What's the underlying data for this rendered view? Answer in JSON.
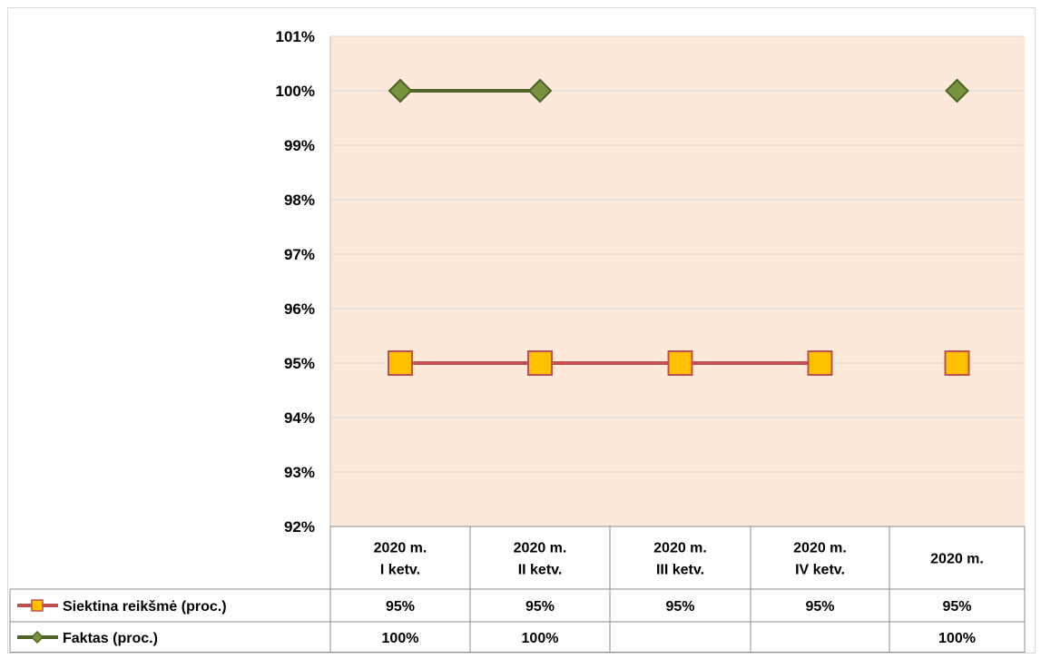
{
  "chart_data": {
    "type": "line",
    "categories": [
      [
        "2020 m.",
        "I ketv."
      ],
      [
        "2020 m.",
        "II ketv."
      ],
      [
        "2020 m.",
        "III ketv."
      ],
      [
        "2020 m.",
        "IV ketv."
      ],
      [
        "2020 m."
      ]
    ],
    "ylim": [
      92,
      101
    ],
    "ytick_labels": [
      "101%",
      "100%",
      "99%",
      "98%",
      "97%",
      "96%",
      "95%",
      "94%",
      "93%",
      "92%"
    ],
    "grid": true,
    "plot_background": "#fce9da",
    "series": [
      {
        "name": "Siektina reikšmė (proc.)",
        "values": [
          95,
          95,
          95,
          95,
          95
        ],
        "labels": [
          "95%",
          "95%",
          "95%",
          "95%",
          "95%"
        ],
        "connected_until": 3,
        "line_color": "#c0504d",
        "marker": "square",
        "marker_fill": "#ffc000",
        "marker_edge": "#c0504d"
      },
      {
        "name": "Faktas (proc.)",
        "values": [
          100,
          100,
          null,
          null,
          100
        ],
        "labels": [
          "100%",
          "100%",
          "",
          "",
          "100%"
        ],
        "connected_until": 1,
        "line_color": "#4f6228",
        "marker": "diamond",
        "marker_fill": "#77933c",
        "marker_edge": "#4f6228"
      }
    ]
  }
}
